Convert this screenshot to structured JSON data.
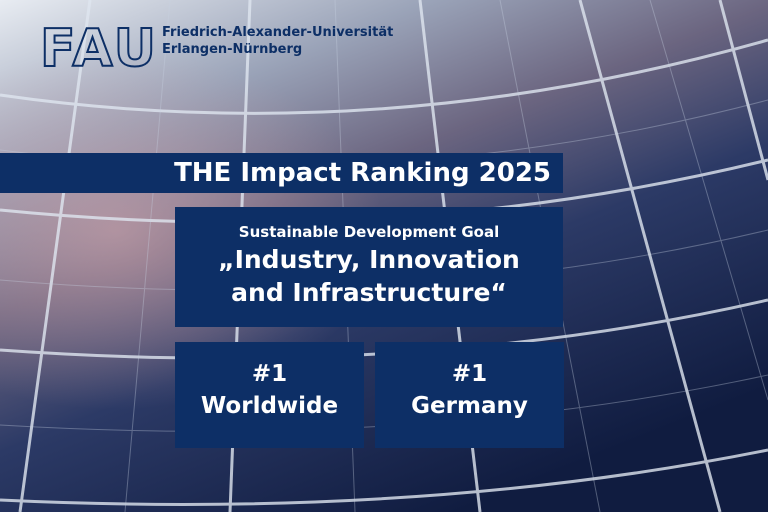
{
  "logo": {
    "acronym": "FAU",
    "name_lines": [
      "Friedrich-Alexander-Universität",
      "Erlangen-Nürnberg"
    ]
  },
  "banner": {
    "title": "THE Impact Ranking 2025"
  },
  "goal": {
    "subtitle": "Sustainable Development Goal",
    "title_lines": [
      "„Industry, Innovation",
      "and Infrastructure“"
    ]
  },
  "rankings": [
    {
      "rank": "#1",
      "scope": "Worldwide"
    },
    {
      "rank": "#1",
      "scope": "Germany"
    }
  ]
}
